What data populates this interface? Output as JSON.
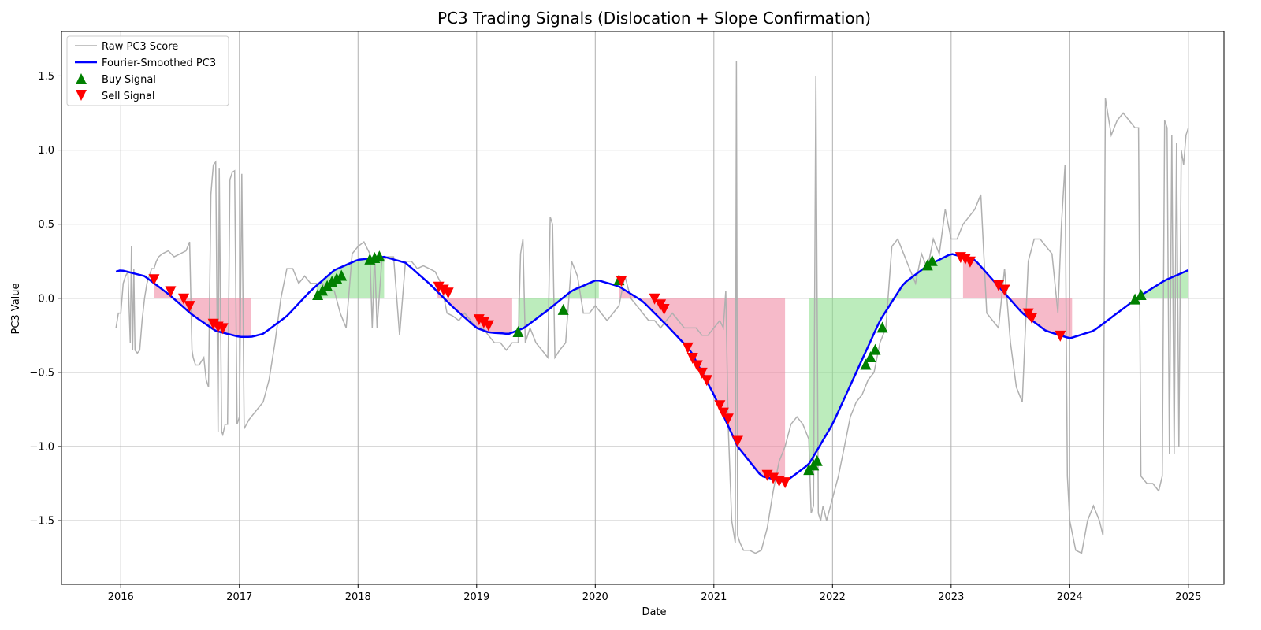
{
  "chart_data": {
    "type": "line",
    "title": "PC3 Trading Signals (Dislocation + Slope Confirmation)",
    "xlabel": "Date",
    "ylabel": "PC3 Value",
    "xlim": [
      2015.5,
      2025.3
    ],
    "ylim": [
      -1.93,
      1.8
    ],
    "x_ticks": [
      2016,
      2017,
      2018,
      2019,
      2020,
      2021,
      2022,
      2023,
      2024,
      2025
    ],
    "x_tick_labels": [
      "2016",
      "2017",
      "2018",
      "2019",
      "2020",
      "2021",
      "2022",
      "2023",
      "2024",
      "2025"
    ],
    "y_ticks": [
      -1.5,
      -1.0,
      -0.5,
      0.0,
      0.5,
      1.0,
      1.5
    ],
    "y_tick_labels": [
      "−1.5",
      "−1.0",
      "−0.5",
      "0.0",
      "0.5",
      "1.0",
      "1.5"
    ],
    "grid": true,
    "legend_position": "top-left",
    "legend": [
      "Raw PC3 Score",
      "Fourier-Smoothed PC3",
      "Buy Signal",
      "Sell Signal"
    ],
    "colors": {
      "raw": "#b0b0b0",
      "smooth": "#0000ff",
      "buy": "#008000",
      "sell": "#ff0000",
      "buy_fill": "#90e090",
      "sell_fill": "#f08ca5",
      "grid": "#b0b0b0"
    },
    "raw_series": {
      "name": "Raw PC3 Score",
      "x": [
        2015.96,
        2015.98,
        2016.0,
        2016.02,
        2016.04,
        2016.06,
        2016.08,
        2016.09,
        2016.1,
        2016.11,
        2016.12,
        2016.14,
        2016.16,
        2016.18,
        2016.2,
        2016.22,
        2016.24,
        2016.26,
        2016.28,
        2016.3,
        2016.32,
        2016.35,
        2016.4,
        2016.45,
        2016.5,
        2016.55,
        2016.58,
        2016.6,
        2016.61,
        2016.63,
        2016.66,
        2016.7,
        2016.72,
        2016.74,
        2016.76,
        2016.77,
        2016.78,
        2016.8,
        2016.82,
        2016.83,
        2016.85,
        2016.86,
        2016.88,
        2016.9,
        2016.92,
        2016.94,
        2016.96,
        2016.98,
        2017.0,
        2017.02,
        2017.04,
        2017.06,
        2017.08,
        2017.1,
        2017.15,
        2017.2,
        2017.25,
        2017.3,
        2017.35,
        2017.4,
        2017.45,
        2017.5,
        2017.55,
        2017.6,
        2017.65,
        2017.7,
        2017.75,
        2017.8,
        2017.85,
        2017.9,
        2017.95,
        2018.0,
        2018.05,
        2018.1,
        2018.12,
        2018.14,
        2018.16,
        2018.2,
        2018.25,
        2018.3,
        2018.35,
        2018.4,
        2018.45,
        2018.5,
        2018.55,
        2018.6,
        2018.65,
        2018.7,
        2018.75,
        2018.8,
        2018.85,
        2018.9,
        2018.95,
        2019.0,
        2019.05,
        2019.1,
        2019.15,
        2019.2,
        2019.25,
        2019.3,
        2019.35,
        2019.37,
        2019.39,
        2019.41,
        2019.43,
        2019.45,
        2019.5,
        2019.55,
        2019.6,
        2019.62,
        2019.64,
        2019.66,
        2019.7,
        2019.75,
        2019.8,
        2019.85,
        2019.9,
        2019.95,
        2020.0,
        2020.05,
        2020.1,
        2020.15,
        2020.2,
        2020.25,
        2020.3,
        2020.35,
        2020.4,
        2020.45,
        2020.5,
        2020.55,
        2020.6,
        2020.65,
        2020.7,
        2020.75,
        2020.8,
        2020.85,
        2020.9,
        2020.95,
        2021.0,
        2021.05,
        2021.08,
        2021.1,
        2021.12,
        2021.15,
        2021.18,
        2021.19,
        2021.2,
        2021.22,
        2021.25,
        2021.3,
        2021.35,
        2021.4,
        2021.45,
        2021.5,
        2021.55,
        2021.6,
        2021.65,
        2021.7,
        2021.75,
        2021.8,
        2021.82,
        2021.84,
        2021.86,
        2021.88,
        2021.9,
        2021.92,
        2021.95,
        2022.0,
        2022.05,
        2022.1,
        2022.15,
        2022.2,
        2022.25,
        2022.3,
        2022.35,
        2022.4,
        2022.45,
        2022.5,
        2022.55,
        2022.6,
        2022.65,
        2022.7,
        2022.75,
        2022.8,
        2022.85,
        2022.9,
        2022.95,
        2023.0,
        2023.05,
        2023.1,
        2023.15,
        2023.2,
        2023.25,
        2023.3,
        2023.35,
        2023.4,
        2023.45,
        2023.5,
        2023.55,
        2023.6,
        2023.65,
        2023.7,
        2023.75,
        2023.8,
        2023.85,
        2023.9,
        2023.93,
        2023.96,
        2023.98,
        2024.0,
        2024.05,
        2024.1,
        2024.15,
        2024.2,
        2024.25,
        2024.28,
        2024.3,
        2024.35,
        2024.4,
        2024.45,
        2024.5,
        2024.55,
        2024.58,
        2024.6,
        2024.65,
        2024.7,
        2024.75,
        2024.78,
        2024.8,
        2024.82,
        2024.84,
        2024.86,
        2024.88,
        2024.9,
        2024.92,
        2024.94,
        2024.96,
        2024.98,
        2025.0
      ],
      "y": [
        -0.2,
        -0.1,
        -0.1,
        0.1,
        0.15,
        0.18,
        -0.3,
        0.35,
        -0.35,
        0.2,
        -0.35,
        -0.37,
        -0.35,
        -0.15,
        0.0,
        0.1,
        0.15,
        0.2,
        0.2,
        0.25,
        0.28,
        0.3,
        0.32,
        0.28,
        0.3,
        0.32,
        0.38,
        -0.35,
        -0.4,
        -0.45,
        -0.45,
        -0.4,
        -0.55,
        -0.6,
        0.7,
        0.8,
        0.9,
        0.92,
        -0.9,
        0.88,
        -0.9,
        -0.92,
        -0.85,
        -0.85,
        0.8,
        0.85,
        0.86,
        -0.85,
        -0.8,
        0.84,
        -0.88,
        -0.85,
        -0.82,
        -0.8,
        -0.75,
        -0.7,
        -0.55,
        -0.3,
        0.0,
        0.2,
        0.2,
        0.1,
        0.15,
        0.1,
        0.1,
        0.1,
        0.05,
        0.05,
        -0.1,
        -0.2,
        0.3,
        0.35,
        0.38,
        0.3,
        -0.2,
        0.3,
        -0.2,
        0.25,
        0.28,
        0.28,
        -0.25,
        0.25,
        0.25,
        0.2,
        0.22,
        0.2,
        0.18,
        0.1,
        -0.1,
        -0.12,
        -0.15,
        -0.1,
        -0.15,
        -0.2,
        -0.2,
        -0.25,
        -0.3,
        -0.3,
        -0.35,
        -0.3,
        -0.3,
        0.3,
        0.4,
        -0.3,
        -0.25,
        -0.2,
        -0.3,
        -0.35,
        -0.4,
        0.55,
        0.5,
        -0.4,
        -0.35,
        -0.3,
        0.25,
        0.15,
        -0.1,
        -0.1,
        -0.05,
        -0.1,
        -0.15,
        -0.1,
        -0.05,
        0.15,
        0.0,
        -0.05,
        -0.1,
        -0.15,
        -0.15,
        -0.2,
        -0.15,
        -0.1,
        -0.15,
        -0.2,
        -0.2,
        -0.2,
        -0.25,
        -0.25,
        -0.2,
        -0.15,
        -0.2,
        0.05,
        -0.85,
        -1.5,
        -1.65,
        1.6,
        -1.6,
        -1.65,
        -1.7,
        -1.7,
        -1.72,
        -1.7,
        -1.55,
        -1.3,
        -1.1,
        -1.0,
        -0.85,
        -0.8,
        -0.85,
        -0.95,
        -1.45,
        -1.4,
        1.5,
        -1.45,
        -1.5,
        -1.4,
        -1.5,
        -1.35,
        -1.2,
        -1.0,
        -0.8,
        -0.7,
        -0.65,
        -0.55,
        -0.5,
        -0.3,
        -0.2,
        0.35,
        0.4,
        0.3,
        0.2,
        0.1,
        0.3,
        0.2,
        0.4,
        0.3,
        0.6,
        0.4,
        0.4,
        0.5,
        0.55,
        0.6,
        0.7,
        -0.1,
        -0.15,
        -0.2,
        0.2,
        -0.3,
        -0.6,
        -0.7,
        0.25,
        0.4,
        0.4,
        0.35,
        0.3,
        -0.1,
        0.5,
        0.9,
        -1.2,
        -1.5,
        -1.7,
        -1.72,
        -1.5,
        -1.4,
        -1.5,
        -1.6,
        1.35,
        1.1,
        1.2,
        1.25,
        1.2,
        1.15,
        1.15,
        -1.2,
        -1.25,
        -1.25,
        -1.3,
        -1.2,
        1.2,
        1.15,
        -1.05,
        1.1,
        -1.05,
        1.05,
        -1.0,
        1.0,
        0.9,
        1.1,
        1.15
      ]
    },
    "smooth_series": {
      "name": "Fourier-Smoothed PC3",
      "x": [
        2015.96,
        2016.0,
        2016.2,
        2016.4,
        2016.6,
        2016.8,
        2017.0,
        2017.1,
        2017.2,
        2017.4,
        2017.6,
        2017.8,
        2018.0,
        2018.22,
        2018.4,
        2018.6,
        2018.8,
        2019.0,
        2019.1,
        2019.27,
        2019.4,
        2019.6,
        2019.8,
        2020.0,
        2020.03,
        2020.2,
        2020.4,
        2020.6,
        2020.8,
        2021.0,
        2021.2,
        2021.4,
        2021.6,
        2021.8,
        2022.0,
        2022.2,
        2022.4,
        2022.6,
        2022.8,
        2023.0,
        2023.2,
        2023.4,
        2023.6,
        2023.8,
        2024.0,
        2024.2,
        2024.4,
        2024.6,
        2024.8,
        2025.0
      ],
      "y": [
        0.18,
        0.19,
        0.15,
        0.03,
        -0.11,
        -0.22,
        -0.26,
        -0.26,
        -0.24,
        -0.12,
        0.05,
        0.19,
        0.26,
        0.28,
        0.24,
        0.1,
        -0.06,
        -0.2,
        -0.23,
        -0.24,
        -0.2,
        -0.08,
        0.05,
        0.12,
        0.12,
        0.08,
        -0.02,
        -0.18,
        -0.35,
        -0.65,
        -1.0,
        -1.2,
        -1.24,
        -1.12,
        -0.85,
        -0.5,
        -0.15,
        0.1,
        0.22,
        0.3,
        0.26,
        0.08,
        -0.1,
        -0.22,
        -0.27,
        -0.22,
        -0.1,
        0.02,
        0.12,
        0.19
      ]
    },
    "buy_signals": {
      "name": "Buy Signal",
      "x": [
        2017.66,
        2017.7,
        2017.74,
        2017.78,
        2017.82,
        2017.86,
        2018.1,
        2018.14,
        2018.18,
        2019.35,
        2019.73,
        2020.2,
        2021.8,
        2021.84,
        2021.87,
        2022.28,
        2022.32,
        2022.36,
        2022.42,
        2022.8,
        2022.84,
        2024.55,
        2024.6
      ],
      "y": [
        0.02,
        0.05,
        0.08,
        0.11,
        0.13,
        0.15,
        0.26,
        0.27,
        0.28,
        -0.23,
        -0.08,
        0.12,
        -1.16,
        -1.13,
        -1.1,
        -0.45,
        -0.4,
        -0.35,
        -0.2,
        0.22,
        0.25,
        -0.01,
        0.02
      ]
    },
    "sell_signals": {
      "name": "Sell Signal",
      "x": [
        2016.28,
        2016.42,
        2016.53,
        2016.58,
        2016.78,
        2016.82,
        2016.86,
        2018.68,
        2018.72,
        2018.76,
        2019.02,
        2019.06,
        2019.1,
        2020.22,
        2020.5,
        2020.55,
        2020.58,
        2020.78,
        2020.82,
        2020.86,
        2020.9,
        2020.94,
        2021.05,
        2021.08,
        2021.12,
        2021.2,
        2021.45,
        2021.5,
        2021.55,
        2021.6,
        2023.08,
        2023.12,
        2023.16,
        2023.4,
        2023.45,
        2023.65,
        2023.68,
        2023.92
      ],
      "y": [
        0.13,
        0.05,
        0.0,
        -0.05,
        -0.17,
        -0.19,
        -0.2,
        0.08,
        0.06,
        0.04,
        -0.14,
        -0.16,
        -0.18,
        0.12,
        0.0,
        -0.04,
        -0.07,
        -0.33,
        -0.4,
        -0.45,
        -0.5,
        -0.55,
        -0.72,
        -0.77,
        -0.81,
        -0.96,
        -1.19,
        -1.21,
        -1.23,
        -1.24,
        0.28,
        0.27,
        0.25,
        0.09,
        0.06,
        -0.1,
        -0.13,
        -0.25
      ]
    },
    "buy_regions": [
      {
        "x": [
          2017.65,
          2017.8,
          2018.0,
          2018.22
        ]
      },
      {
        "x": [
          2019.35,
          2019.6,
          2019.8,
          2020.03
        ]
      },
      {
        "x": [
          2021.8,
          2022.0,
          2022.2,
          2022.4,
          2022.6,
          2022.8,
          2023.0
        ]
      },
      {
        "x": [
          2024.55,
          2024.6,
          2024.8,
          2025.0
        ]
      }
    ],
    "sell_regions": [
      {
        "x": [
          2016.28,
          2016.4,
          2016.6,
          2016.8,
          2017.0,
          2017.1
        ]
      },
      {
        "x": [
          2018.67,
          2018.8,
          2019.0,
          2019.1,
          2019.3
        ]
      },
      {
        "x": [
          2020.2,
          2020.4,
          2020.6,
          2020.8,
          2021.0,
          2021.2,
          2021.4,
          2021.6
        ]
      },
      {
        "x": [
          2023.1,
          2023.2,
          2023.4,
          2023.6,
          2023.8,
          2024.0,
          2024.02
        ]
      }
    ]
  }
}
